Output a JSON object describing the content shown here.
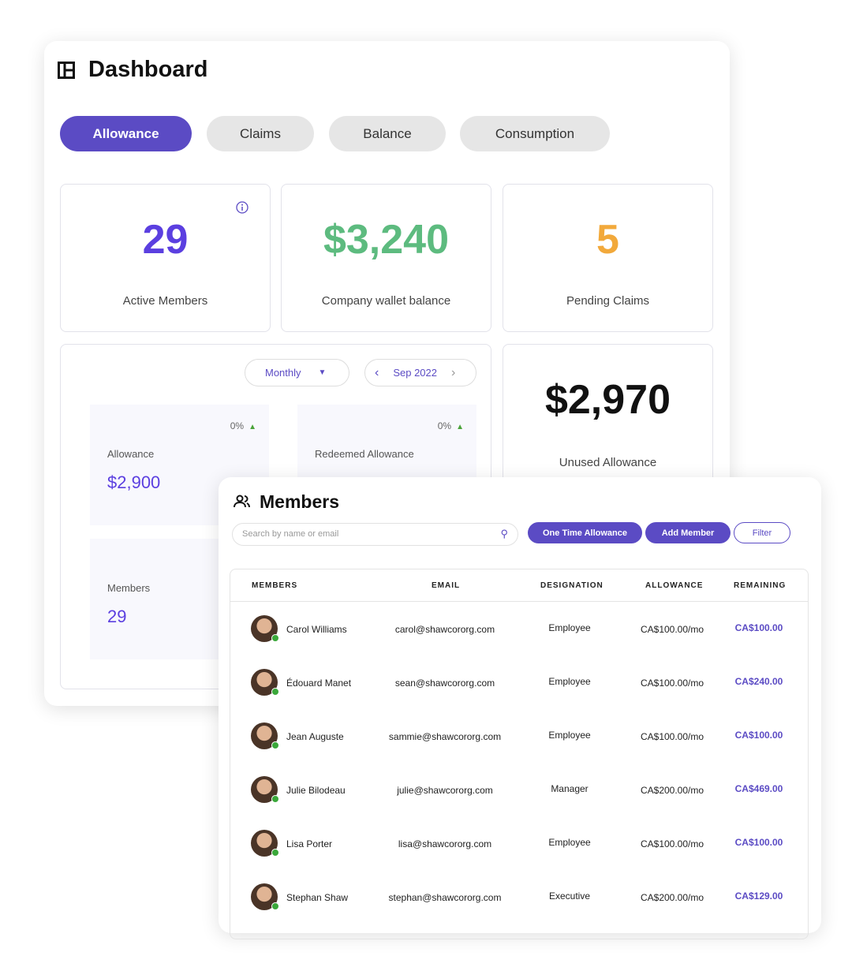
{
  "dashboard": {
    "title": "Dashboard",
    "tabs": [
      "Allowance",
      "Claims",
      "Balance",
      "Consumption"
    ],
    "stats": [
      {
        "value": "29",
        "label": "Active Members",
        "color": "#5b3fe0"
      },
      {
        "value": "$3,240",
        "label": "Company wallet balance",
        "color": "#5dbb7f"
      },
      {
        "value": "5",
        "label": "Pending Claims",
        "color": "#f2a93b"
      }
    ],
    "period": "Monthly",
    "month": "Sep 2022",
    "tiles": [
      {
        "pct": "0%",
        "label": "Allowance",
        "value": "$2,900"
      },
      {
        "pct": "0%",
        "label": "Redeemed Allowance"
      },
      {
        "label": "Members",
        "value": "29"
      }
    ],
    "unused": {
      "value": "$2,970",
      "label": "Unused Allowance"
    }
  },
  "members": {
    "title": "Members",
    "search_placeholder": "Search by name or email",
    "buttons": {
      "one_time": "One Time Allowance",
      "add": "Add Member",
      "filter": "Filter"
    },
    "columns": [
      "MEMBERS",
      "EMAIL",
      "DESIGNATION",
      "ALLOWANCE",
      "REMAINING"
    ],
    "rows": [
      {
        "name": "Carol Williams",
        "email": "carol@shawcororg.com",
        "designation": "Employee",
        "allowance": "CA$100.00/mo",
        "remaining": "CA$100.00"
      },
      {
        "name": "Édouard Manet",
        "email": "sean@shawcororg.com",
        "designation": "Employee",
        "allowance": "CA$100.00/mo",
        "remaining": "CA$240.00"
      },
      {
        "name": "Jean Auguste",
        "email": "sammie@shawcororg.com",
        "designation": "Employee",
        "allowance": "CA$100.00/mo",
        "remaining": "CA$100.00"
      },
      {
        "name": "Julie Bilodeau",
        "email": "julie@shawcororg.com",
        "designation": "Manager",
        "allowance": "CA$200.00/mo",
        "remaining": "CA$469.00"
      },
      {
        "name": "Lisa Porter",
        "email": "lisa@shawcororg.com",
        "designation": "Employee",
        "allowance": "CA$100.00/mo",
        "remaining": "CA$100.00"
      },
      {
        "name": "Stephan Shaw",
        "email": "stephan@shawcororg.com",
        "designation": "Executive",
        "allowance": "CA$200.00/mo",
        "remaining": "CA$129.00"
      }
    ]
  }
}
